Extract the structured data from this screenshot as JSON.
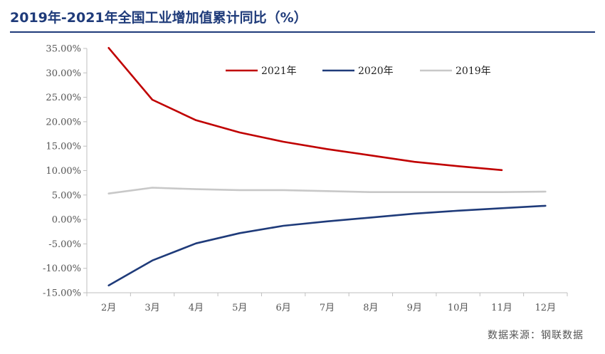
{
  "title": "2019年-2021年全国工业增加值累计同比（%）",
  "source": "数据来源：钢联数据",
  "chart_data": {
    "type": "line",
    "title": "2019年-2021年全国工业增加值累计同比（%）",
    "categories": [
      "2月",
      "3月",
      "4月",
      "5月",
      "6月",
      "7月",
      "8月",
      "9月",
      "10月",
      "11月",
      "12月"
    ],
    "ylim": [
      -15,
      35
    ],
    "yticks": [
      "35.00%",
      "30.00%",
      "25.00%",
      "20.00%",
      "15.00%",
      "10.00%",
      "5.00%",
      "0.00%",
      "-5.00%",
      "-10.00%",
      "-15.00%"
    ],
    "grid": false,
    "legend_position": "top-right",
    "series": [
      {
        "name": "2021年",
        "color": "#c00000",
        "values": [
          35.1,
          24.5,
          20.3,
          17.8,
          15.9,
          14.4,
          13.1,
          11.8,
          10.9,
          10.1,
          null
        ]
      },
      {
        "name": "2020年",
        "color": "#1f3b7a",
        "values": [
          -13.5,
          -8.4,
          -4.9,
          -2.8,
          -1.3,
          -0.4,
          0.4,
          1.2,
          1.8,
          2.3,
          2.8
        ]
      },
      {
        "name": "2019年",
        "color": "#c8c8c8",
        "values": [
          5.3,
          6.5,
          6.2,
          6.0,
          6.0,
          5.8,
          5.6,
          5.6,
          5.6,
          5.6,
          5.7
        ]
      }
    ]
  }
}
